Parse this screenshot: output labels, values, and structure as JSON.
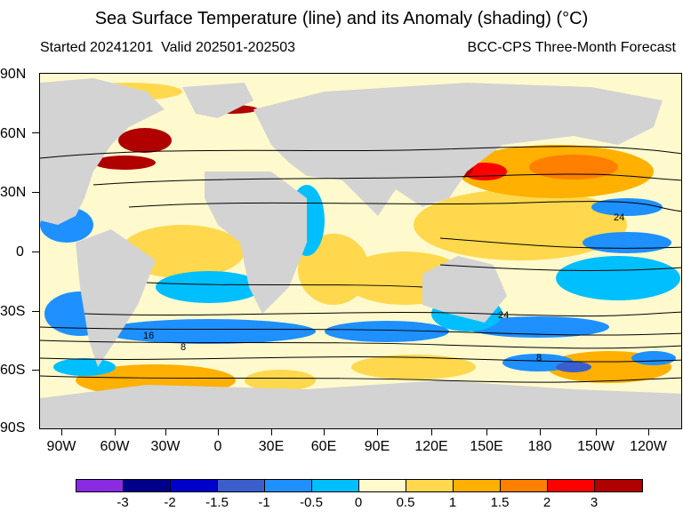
{
  "header": {
    "title": "Sea Surface Temperature (line) and its Anomaly (shading) (°C)",
    "started": "Started 20241201",
    "valid": "Valid 202501-202503",
    "forecast_name": "BCC-CPS Three-Month Forecast"
  },
  "axes": {
    "lat_labels": [
      "90N",
      "60N",
      "30N",
      "0",
      "30S",
      "60S",
      "90S"
    ],
    "lon_labels": [
      "90W",
      "60W",
      "30W",
      "0",
      "30E",
      "60E",
      "90E",
      "120E",
      "150E",
      "180",
      "150W",
      "120W"
    ]
  },
  "contour_labels": [
    "24",
    "24",
    "16",
    "8",
    "8"
  ],
  "colorbar": {
    "colors": [
      "#8a2be2",
      "#00008b",
      "#0000cd",
      "#3a5fcd",
      "#1e90ff",
      "#00bfff",
      "#fffacd",
      "#ffd84d",
      "#ffb000",
      "#ff7f00",
      "#ff0000",
      "#b00000"
    ],
    "labels": [
      "-3",
      "-2",
      "-1.5",
      "-1",
      "-0.5",
      "0",
      "0.5",
      "1",
      "1.5",
      "2",
      "3"
    ]
  },
  "land_color": "#d3d3d3"
}
